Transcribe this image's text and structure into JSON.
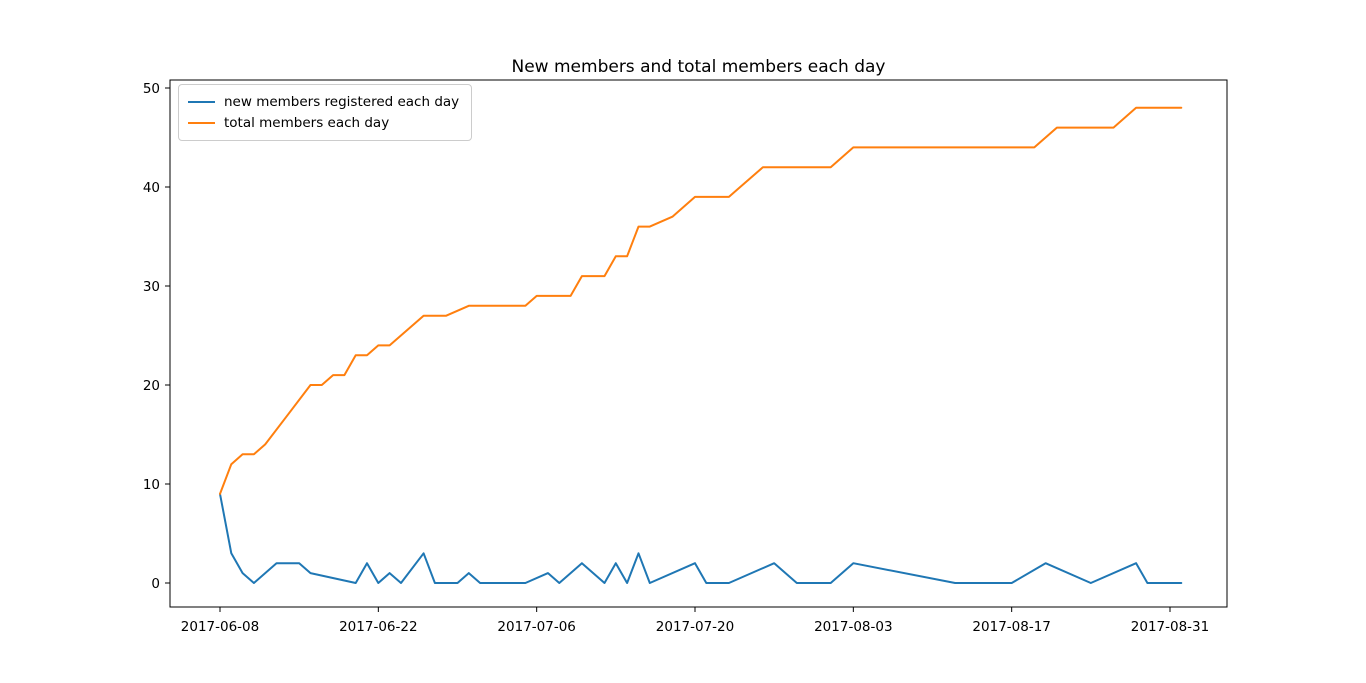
{
  "chart_data": {
    "type": "line",
    "title": "New members and total members each day",
    "xlabel": "",
    "ylabel": "",
    "x_tick_labels": [
      "2017-06-08",
      "2017-06-22",
      "2017-07-06",
      "2017-07-20",
      "2017-08-03",
      "2017-08-17",
      "2017-08-31"
    ],
    "y_ticks": [
      0,
      10,
      20,
      30,
      40,
      50
    ],
    "x_range": [
      "2017-06-08",
      "2017-09-01"
    ],
    "ylim": [
      -2.5,
      51
    ],
    "grid": false,
    "legend_position": "upper left",
    "background_color": "#ffffff",
    "axis_color": "#000000",
    "series": [
      {
        "name": "new members registered each day",
        "color": "#1f77b4",
        "points": [
          [
            "2017-06-08",
            9
          ],
          [
            "2017-06-09",
            3
          ],
          [
            "2017-06-10",
            1
          ],
          [
            "2017-06-11",
            0
          ],
          [
            "2017-06-13",
            2
          ],
          [
            "2017-06-15",
            2
          ],
          [
            "2017-06-16",
            1
          ],
          [
            "2017-06-20",
            0
          ],
          [
            "2017-06-21",
            2
          ],
          [
            "2017-06-22",
            0
          ],
          [
            "2017-06-23",
            1
          ],
          [
            "2017-06-24",
            0
          ],
          [
            "2017-06-26",
            3
          ],
          [
            "2017-06-27",
            0
          ],
          [
            "2017-06-29",
            0
          ],
          [
            "2017-06-30",
            1
          ],
          [
            "2017-07-01",
            0
          ],
          [
            "2017-07-05",
            0
          ],
          [
            "2017-07-07",
            1
          ],
          [
            "2017-07-08",
            0
          ],
          [
            "2017-07-10",
            2
          ],
          [
            "2017-07-12",
            0
          ],
          [
            "2017-07-13",
            2
          ],
          [
            "2017-07-14",
            0
          ],
          [
            "2017-07-15",
            3
          ],
          [
            "2017-07-16",
            0
          ],
          [
            "2017-07-20",
            2
          ],
          [
            "2017-07-21",
            0
          ],
          [
            "2017-07-23",
            0
          ],
          [
            "2017-07-27",
            2
          ],
          [
            "2017-07-29",
            0
          ],
          [
            "2017-08-01",
            0
          ],
          [
            "2017-08-03",
            2
          ],
          [
            "2017-08-12",
            0
          ],
          [
            "2017-08-17",
            0
          ],
          [
            "2017-08-20",
            2
          ],
          [
            "2017-08-24",
            0
          ],
          [
            "2017-08-28",
            2
          ],
          [
            "2017-08-29",
            0
          ],
          [
            "2017-09-01",
            0
          ]
        ]
      },
      {
        "name": "total members each day",
        "color": "#ff7f0e",
        "points": [
          [
            "2017-06-08",
            9
          ],
          [
            "2017-06-09",
            12
          ],
          [
            "2017-06-10",
            13
          ],
          [
            "2017-06-11",
            13
          ],
          [
            "2017-06-12",
            14
          ],
          [
            "2017-06-14",
            17
          ],
          [
            "2017-06-16",
            20
          ],
          [
            "2017-06-17",
            20
          ],
          [
            "2017-06-18",
            21
          ],
          [
            "2017-06-19",
            21
          ],
          [
            "2017-06-20",
            23
          ],
          [
            "2017-06-21",
            23
          ],
          [
            "2017-06-22",
            24
          ],
          [
            "2017-06-23",
            24
          ],
          [
            "2017-06-26",
            27
          ],
          [
            "2017-06-28",
            27
          ],
          [
            "2017-06-30",
            28
          ],
          [
            "2017-07-05",
            28
          ],
          [
            "2017-07-06",
            29
          ],
          [
            "2017-07-09",
            29
          ],
          [
            "2017-07-10",
            31
          ],
          [
            "2017-07-12",
            31
          ],
          [
            "2017-07-13",
            33
          ],
          [
            "2017-07-14",
            33
          ],
          [
            "2017-07-15",
            36
          ],
          [
            "2017-07-16",
            36
          ],
          [
            "2017-07-18",
            37
          ],
          [
            "2017-07-20",
            39
          ],
          [
            "2017-07-23",
            39
          ],
          [
            "2017-07-24",
            40
          ],
          [
            "2017-07-26",
            42
          ],
          [
            "2017-08-01",
            42
          ],
          [
            "2017-08-03",
            44
          ],
          [
            "2017-08-19",
            44
          ],
          [
            "2017-08-21",
            46
          ],
          [
            "2017-08-26",
            46
          ],
          [
            "2017-08-28",
            48
          ],
          [
            "2017-09-01",
            48
          ]
        ]
      }
    ]
  }
}
